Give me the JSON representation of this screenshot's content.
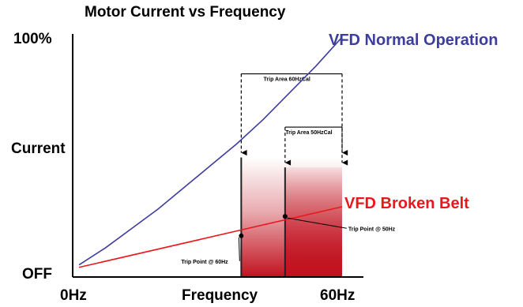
{
  "chart_data": {
    "type": "line",
    "title": "Motor Current vs Frequency",
    "xlabel": "Frequency",
    "ylabel": "Current",
    "x_tick_labels": [
      "0Hz",
      "60Hz"
    ],
    "y_tick_labels": [
      "OFF",
      "100%"
    ],
    "xlim": [
      0,
      60
    ],
    "ylim": [
      0,
      100
    ],
    "series": [
      {
        "name": "VFD Normal Operation",
        "color": "#3d3d9e",
        "x": [
          0,
          6,
          12,
          18,
          24,
          30,
          36,
          42,
          48,
          54,
          60
        ],
        "y": [
          5,
          12,
          20,
          28,
          37,
          46,
          55,
          65,
          76,
          87,
          99
        ]
      },
      {
        "name": "VFD Broken Belt",
        "color": "#e8191e",
        "x": [
          0,
          60
        ],
        "y": [
          4,
          29
        ]
      }
    ],
    "trip_zones": [
      {
        "label": "Trip Area 60HzCal",
        "x_range": [
          37,
          60
        ],
        "line_y": 78,
        "color": "#c1121f"
      },
      {
        "label": "Trip Area 50HzCal",
        "x_range": [
          47,
          60
        ],
        "line_y": 56,
        "color": "#c1121f"
      }
    ],
    "trip_points": [
      {
        "label": "Trip Point @ 50Hz",
        "x": 47,
        "y": 25
      },
      {
        "label": "Trip Point @ 60Hz",
        "x": 37,
        "y": 17
      }
    ],
    "grid": false
  }
}
